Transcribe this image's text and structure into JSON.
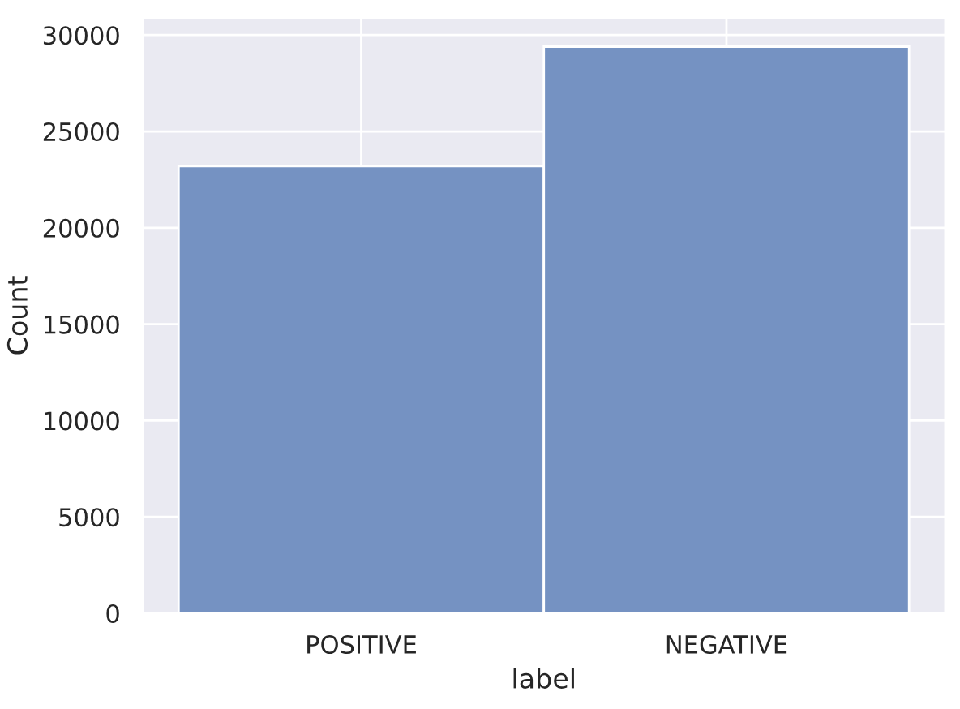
{
  "chart_data": {
    "type": "bar",
    "xlabel": "label",
    "ylabel": "Count",
    "categories": [
      "POSITIVE",
      "NEGATIVE"
    ],
    "values": [
      23200,
      29400
    ],
    "color": "#7592c2",
    "ylim": [
      0,
      30900
    ],
    "yticks": [
      0,
      5000,
      10000,
      15000,
      20000,
      25000,
      30000
    ],
    "grid": true
  }
}
